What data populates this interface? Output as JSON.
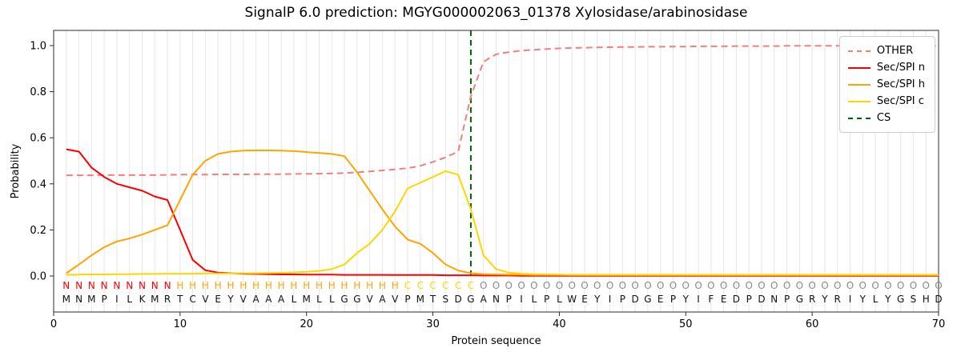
{
  "chart_data": {
    "type": "line",
    "title": "SignalP 6.0 prediction: MGYG000002063_01378 Xylosidase/arabinosidase",
    "xlabel": "Protein sequence",
    "ylabel": "Probability",
    "xlim": [
      0,
      70
    ],
    "ylim": [
      0,
      1
    ],
    "xticks": [
      0,
      10,
      20,
      30,
      40,
      50,
      60,
      70
    ],
    "yticks": [
      0,
      0.2,
      0.4,
      0.6,
      0.8,
      1.0
    ],
    "grid": "vertical line per residue position",
    "legend_position": "upper right",
    "legend": [
      "OTHER",
      "Sec/SPI n",
      "Sec/SPI h",
      "Sec/SPI c",
      "CS"
    ],
    "x_start": 1,
    "x_step": 1,
    "series": [
      {
        "id": "other",
        "name": "OTHER",
        "color": "#f08080",
        "style": "dashed",
        "values": [
          0.437,
          0.437,
          0.437,
          0.438,
          0.438,
          0.438,
          0.438,
          0.438,
          0.439,
          0.44,
          0.44,
          0.44,
          0.441,
          0.441,
          0.441,
          0.442,
          0.442,
          0.442,
          0.443,
          0.443,
          0.444,
          0.445,
          0.447,
          0.45,
          0.454,
          0.458,
          0.463,
          0.468,
          0.478,
          0.495,
          0.515,
          0.54,
          0.78,
          0.93,
          0.962,
          0.972,
          0.978,
          0.982,
          0.985,
          0.988,
          0.99,
          0.991,
          0.992,
          0.993,
          0.994,
          0.994,
          0.995,
          0.995,
          0.996,
          0.996,
          0.997,
          0.997,
          0.997,
          0.998,
          0.998,
          0.998,
          0.998,
          0.999,
          0.999,
          0.999,
          0.999,
          0.999,
          0.999,
          0.999,
          0.999,
          0.999,
          0.999,
          0.999,
          0.999,
          0.999
        ]
      },
      {
        "id": "n",
        "name": "Sec/SPI n",
        "color": "#ff0000",
        "style": "solid",
        "values": [
          0.55,
          0.54,
          0.47,
          0.43,
          0.4,
          0.385,
          0.37,
          0.345,
          0.33,
          0.2,
          0.07,
          0.025,
          0.015,
          0.012,
          0.01,
          0.009,
          0.008,
          0.007,
          0.007,
          0.006,
          0.006,
          0.006,
          0.005,
          0.005,
          0.005,
          0.005,
          0.004,
          0.004,
          0.004,
          0.004,
          0.003,
          0.003,
          0.003,
          0.002,
          0.002,
          0.002,
          0.001,
          0.001,
          0.001,
          0.001,
          0.001,
          0.001,
          0.001,
          0.001,
          0.001,
          0.001,
          0.001,
          0.001,
          0.001,
          0.001,
          0.001,
          0.001,
          0.001,
          0.001,
          0.001,
          0.001,
          0.001,
          0.001,
          0.001,
          0.001,
          0.001,
          0.001,
          0.001,
          0.001,
          0.001,
          0.001,
          0.001,
          0.001,
          0.001,
          0.001
        ]
      },
      {
        "id": "h",
        "name": "Sec/SPI h",
        "color": "#ffa500",
        "style": "solid",
        "values": [
          0.012,
          0.05,
          0.09,
          0.125,
          0.15,
          0.163,
          0.18,
          0.2,
          0.22,
          0.33,
          0.44,
          0.5,
          0.53,
          0.54,
          0.544,
          0.545,
          0.545,
          0.544,
          0.542,
          0.538,
          0.534,
          0.53,
          0.52,
          0.45,
          0.37,
          0.29,
          0.215,
          0.158,
          0.14,
          0.1,
          0.05,
          0.024,
          0.012,
          0.008,
          0.007,
          0.006,
          0.006,
          0.005,
          0.005,
          0.005,
          0.004,
          0.004,
          0.004,
          0.004,
          0.004,
          0.004,
          0.004,
          0.004,
          0.004,
          0.004,
          0.004,
          0.004,
          0.004,
          0.004,
          0.004,
          0.004,
          0.004,
          0.004,
          0.004,
          0.004,
          0.004,
          0.004,
          0.004,
          0.004,
          0.004,
          0.004,
          0.004,
          0.004,
          0.004,
          0.004
        ]
      },
      {
        "id": "c",
        "name": "Sec/SPI c",
        "color": "#ffd700",
        "style": "solid",
        "values": [
          0.005,
          0.006,
          0.007,
          0.007,
          0.008,
          0.008,
          0.009,
          0.009,
          0.01,
          0.01,
          0.01,
          0.011,
          0.011,
          0.011,
          0.012,
          0.012,
          0.013,
          0.014,
          0.016,
          0.018,
          0.022,
          0.03,
          0.05,
          0.1,
          0.14,
          0.2,
          0.28,
          0.38,
          0.405,
          0.43,
          0.455,
          0.44,
          0.29,
          0.09,
          0.03,
          0.015,
          0.01,
          0.008,
          0.007,
          0.006,
          0.005,
          0.005,
          0.005,
          0.005,
          0.005,
          0.005,
          0.005,
          0.005,
          0.005,
          0.005,
          0.005,
          0.005,
          0.005,
          0.005,
          0.005,
          0.005,
          0.005,
          0.005,
          0.005,
          0.005,
          0.005,
          0.005,
          0.005,
          0.005,
          0.005,
          0.005,
          0.005,
          0.005,
          0.005,
          0.005
        ]
      }
    ],
    "cs_line": {
      "label": "CS",
      "x": 33,
      "color": "#006400",
      "style": "dashed"
    },
    "sequence": "MNMPILKMRTCVEYVAAALMLLGGVAVPMTSDGANPILPLWEYIPDGEPYIFEDPDNPGRYRIYLYGSHD",
    "region_labels": "NNNNNNNNNHHHHHHHHHHHHHHHHHHCCCCCCOOOOOOOOOOOOOOOOOOOOOOOOOOOOOOOOOOOOO",
    "region_colors": {
      "N": "#ff0000",
      "H": "#ffa500",
      "C": "#ffd700",
      "O": "#8a8a8a"
    }
  }
}
